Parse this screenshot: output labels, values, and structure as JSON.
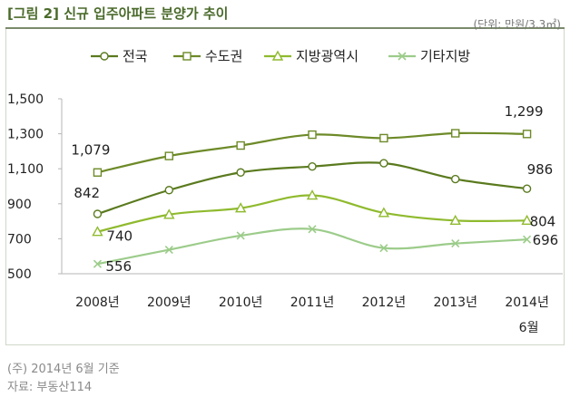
{
  "title": "[그림 2] 신규 입주아파트 분양가 추이",
  "chart_data": {
    "type": "line",
    "unit_label": "(단위: 만원/3.3㎡)",
    "categories": [
      "2008년",
      "2009년",
      "2010년",
      "2011년",
      "2012년",
      "2013년",
      "2014년"
    ],
    "category_sublabels": [
      "",
      "",
      "",
      "",
      "",
      "",
      "6월"
    ],
    "ylim": [
      500,
      1500
    ],
    "yticks": [
      500,
      700,
      900,
      1100,
      1300,
      1500
    ],
    "ytick_labels": [
      "500",
      "700",
      "900",
      "1,100",
      "1,300",
      "1,500"
    ],
    "legend_position": "top",
    "series": [
      {
        "name": "전국",
        "marker": "circle",
        "color": "#5a7a1e",
        "values": [
          842,
          978,
          1079,
          1113,
          1132,
          1041,
          986
        ],
        "labels": [
          {
            "index": 0,
            "text": "842"
          },
          {
            "index": 6,
            "text": "986"
          }
        ]
      },
      {
        "name": "수도권",
        "marker": "square",
        "color": "#6d8a28",
        "values": [
          1079,
          1173,
          1233,
          1295,
          1275,
          1303,
          1299
        ],
        "labels": [
          {
            "index": 0,
            "text": "1,079"
          },
          {
            "index": 6,
            "text": "1,299"
          }
        ]
      },
      {
        "name": "지방광역시",
        "marker": "triangle",
        "color": "#8fba2e",
        "values": [
          740,
          838,
          875,
          948,
          848,
          804,
          804
        ],
        "labels": [
          {
            "index": 0,
            "text": "740"
          },
          {
            "index": 6,
            "text": "804"
          }
        ]
      },
      {
        "name": "기타지방",
        "marker": "x",
        "color": "#9ccc8a",
        "values": [
          556,
          637,
          718,
          755,
          647,
          673,
          696
        ],
        "labels": [
          {
            "index": 0,
            "text": "556"
          },
          {
            "index": 6,
            "text": "696"
          }
        ]
      }
    ]
  },
  "notes": {
    "basis": "(주) 2014년 6월 기준",
    "source": "자료: 부동산114"
  }
}
